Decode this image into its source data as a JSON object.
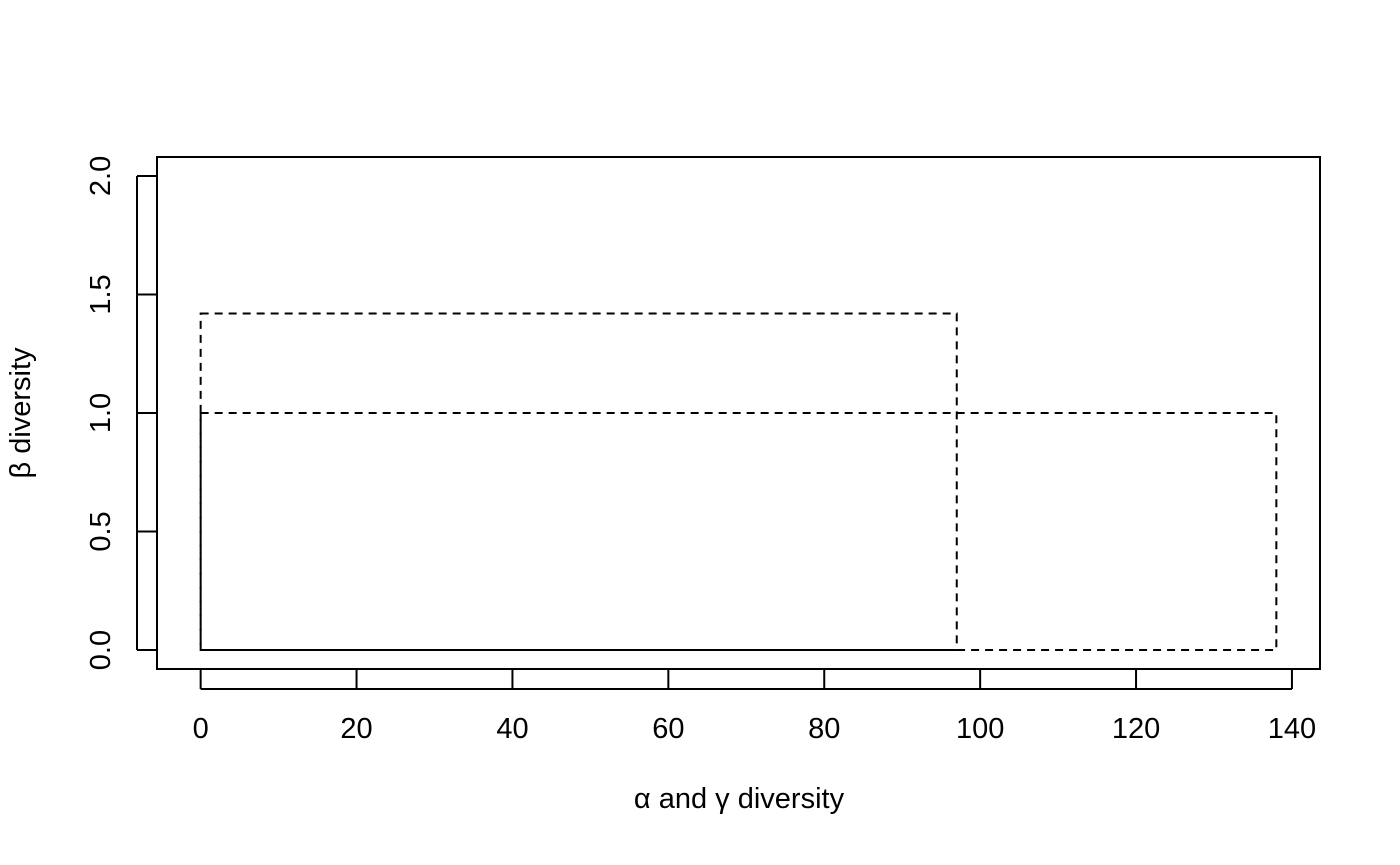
{
  "chart_data": {
    "type": "rect-diagram",
    "title": "",
    "xlabel": "α and γ diversity",
    "ylabel": "β diversity",
    "xlim": [
      -5.6,
      143.6
    ],
    "ylim": [
      -0.08,
      2.08
    ],
    "x_ticks": [
      0,
      20,
      40,
      60,
      80,
      100,
      120,
      140
    ],
    "y_ticks": [
      0.0,
      0.5,
      1.0,
      1.5,
      2.0
    ],
    "x_tick_labels": [
      "0",
      "20",
      "40",
      "60",
      "80",
      "100",
      "120",
      "140"
    ],
    "y_tick_labels": [
      "0.0",
      "0.5",
      "1.0",
      "1.5",
      "2.0"
    ],
    "rectangles": [
      {
        "x": [
          0,
          97
        ],
        "y": [
          0,
          1.42
        ],
        "line": "dashed"
      },
      {
        "x": [
          0,
          138
        ],
        "y": [
          0,
          1.0
        ],
        "line": "dashed"
      }
    ],
    "grid": false,
    "legend": "none"
  }
}
